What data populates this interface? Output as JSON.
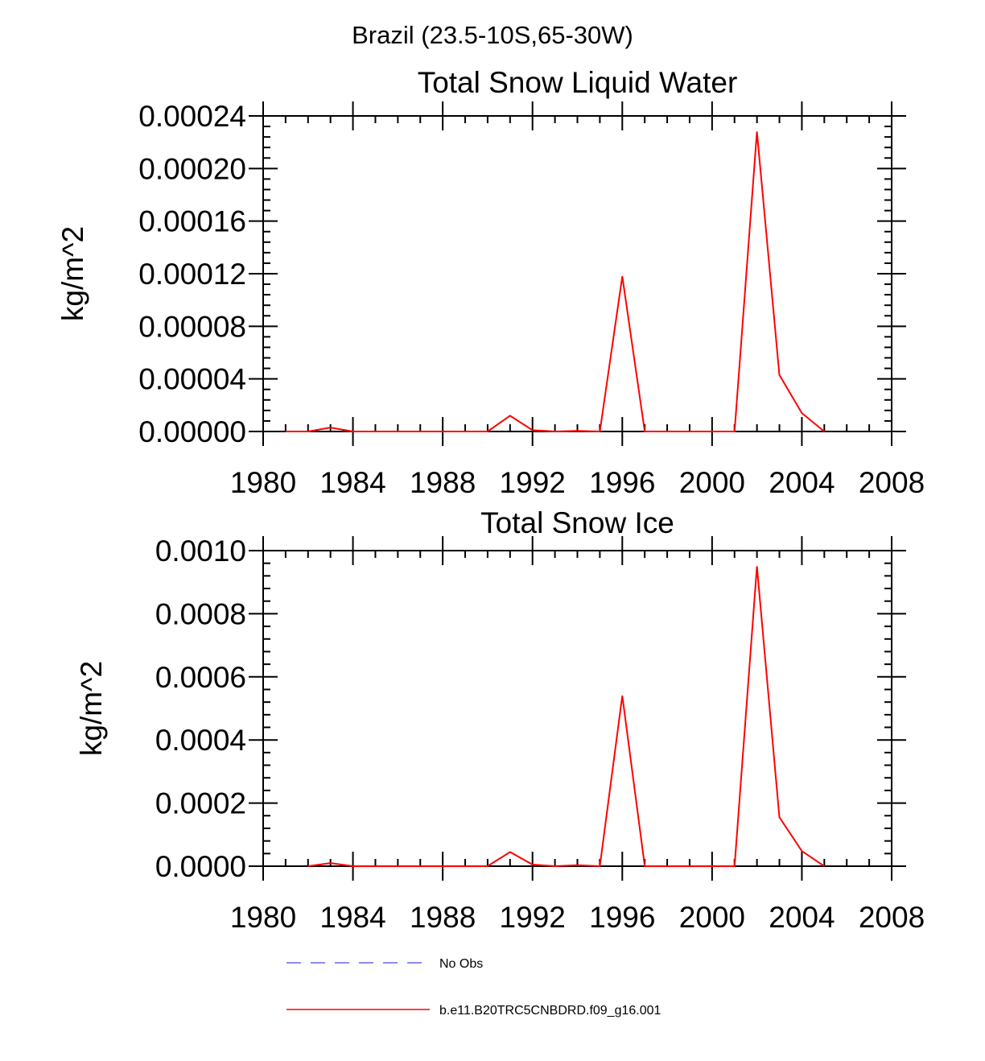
{
  "page_title": "Brazil (23.5-10S,65-30W)",
  "chart_data": [
    {
      "type": "line",
      "title": "Total Snow Liquid Water",
      "ylabel": "kg/m^2",
      "xlabel": "",
      "xlim": [
        1980,
        2008
      ],
      "ylim": [
        0,
        0.00024
      ],
      "x_tick_labels": [
        "1980",
        "1984",
        "1988",
        "1992",
        "1996",
        "2000",
        "2004",
        "2008"
      ],
      "y_tick_labels": [
        "0.00000",
        "0.00004",
        "0.00008",
        "0.00012",
        "0.00016",
        "0.00020",
        "0.00024"
      ],
      "series": [
        {
          "name": "b.e11.B20TRC5CNBDRD.f09_g16.001",
          "color": "#ff0000",
          "x": [
            1981,
            1982,
            1983,
            1984,
            1985,
            1986,
            1987,
            1988,
            1989,
            1990,
            1991,
            1992,
            1993,
            1994,
            1995,
            1996,
            1997,
            1998,
            1999,
            2000,
            2001,
            2002,
            2003,
            2004,
            2005
          ],
          "values": [
            0,
            0,
            3e-06,
            0,
            0,
            0,
            0,
            0,
            0,
            0,
            1.2e-05,
            1e-06,
            0,
            5e-07,
            0,
            0.000118,
            0,
            0,
            0,
            0,
            0,
            0.000228,
            4.3e-05,
            1.4e-05,
            0
          ]
        }
      ]
    },
    {
      "type": "line",
      "title": "Total Snow Ice",
      "ylabel": "kg/m^2",
      "xlabel": "",
      "xlim": [
        1980,
        2008
      ],
      "ylim": [
        0,
        0.001
      ],
      "x_tick_labels": [
        "1980",
        "1984",
        "1988",
        "1992",
        "1996",
        "2000",
        "2004",
        "2008"
      ],
      "y_tick_labels": [
        "0.0000",
        "0.0002",
        "0.0004",
        "0.0006",
        "0.0008",
        "0.0010"
      ],
      "series": [
        {
          "name": "b.e11.B20TRC5CNBDRD.f09_g16.001",
          "color": "#ff0000",
          "x": [
            1982,
            1983,
            1984,
            1985,
            1986,
            1987,
            1988,
            1989,
            1990,
            1991,
            1992,
            1993,
            1994,
            1995,
            1996,
            1997,
            1998,
            1999,
            2000,
            2001,
            2002,
            2003,
            2004,
            2005
          ],
          "values": [
            0,
            1e-05,
            0,
            0,
            0,
            0,
            0,
            0,
            0,
            4.5e-05,
            5e-06,
            0,
            3e-06,
            0,
            0.00054,
            0,
            0,
            0,
            0,
            0,
            0.00095,
            0.000155,
            4.8e-05,
            0
          ]
        }
      ]
    }
  ],
  "legend": [
    {
      "label": "No Obs",
      "color": "#6666ee",
      "style": "dashed"
    },
    {
      "label": "b.e11.B20TRC5CNBDRD.f09_g16.001",
      "color": "#ff0000",
      "style": "solid"
    }
  ]
}
